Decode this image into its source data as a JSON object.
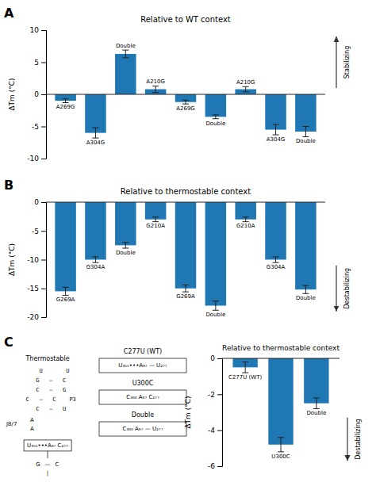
{
  "chart_data": [
    {
      "type": "bar",
      "title": "Relative to WT context",
      "ylabel": "ΔTm (°C)",
      "categories": [
        "A269G",
        "A304G",
        "Double",
        "A210G",
        "A269G",
        "Double",
        "A210G",
        "A304G",
        "Double"
      ],
      "values": [
        -1.0,
        -6.0,
        6.3,
        0.8,
        -1.2,
        -3.5,
        0.8,
        -5.5,
        -5.8
      ],
      "errors": [
        0.3,
        0.8,
        0.6,
        0.5,
        0.3,
        0.3,
        0.4,
        0.8,
        0.8
      ],
      "ylim": [
        -10,
        10
      ],
      "yticks": [
        -10,
        -5,
        0,
        5,
        10
      ],
      "tick_labels": "y",
      "annotations": [
        {
          "text": "A"
        },
        {
          "text": "Stabilizing",
          "arrow": "up"
        }
      ]
    },
    {
      "type": "bar",
      "title": "Relative to thermostable context",
      "ylabel": "ΔTm (°C)",
      "categories": [
        "G269A",
        "G304A",
        "Double",
        "G210A",
        "G269A",
        "Double",
        "G210A",
        "G304A",
        "Double"
      ],
      "values": [
        -15.5,
        -10.0,
        -7.5,
        -3.0,
        -15.0,
        -18.0,
        -3.0,
        -10.0,
        -15.2
      ],
      "errors": [
        0.7,
        0.5,
        0.5,
        0.4,
        0.6,
        0.8,
        0.4,
        0.5,
        0.7
      ],
      "ylim": [
        -20,
        0
      ],
      "yticks": [
        -20,
        -15,
        -10,
        -5,
        0
      ],
      "tick_labels": "y",
      "annotations": [
        {
          "text": "B"
        },
        {
          "text": "Destabilizing",
          "arrow": "down"
        }
      ]
    },
    {
      "type": "diagram",
      "annotations": [
        {
          "text": "C"
        },
        {
          "text": "Thermostable"
        },
        {
          "text": "    U       U"
        },
        {
          "text": "  G   —   C"
        },
        {
          "text": "  C   —   G"
        },
        {
          "text": "  C   —   C    P3"
        },
        {
          "text": "  C   —   U"
        },
        {
          "text": "J8/7"
        },
        {
          "text": "A"
        },
        {
          "text": "A"
        },
        {
          "text": "U₃₅₅•••A₉₇   C₂₇₇",
          "box": true
        },
        {
          "text": "G"
        },
        {
          "text": "—"
        },
        {
          "text": "C"
        },
        {
          "text": "|"
        }
      ]
    },
    {
      "type": "diagram",
      "annotations": [
        {
          "text": "C277U (WT)"
        },
        {
          "text": "U₃₅₅•••A₉₇ — U₂₇₇",
          "box": true
        },
        {
          "text": "U300C"
        },
        {
          "text": "C₃₀₀   A₉₇   C₂₇₇",
          "box": true
        },
        {
          "text": "Double"
        },
        {
          "text": "C₃₀₀   A₉₇ — U₂₇₇",
          "box": true
        }
      ]
    },
    {
      "type": "bar",
      "title": "Relative to thermostable context",
      "ylabel": "ΔTm (°C)",
      "categories": [
        "C277U (WT)",
        "U300C",
        "Double"
      ],
      "values": [
        -0.5,
        -4.8,
        -2.5
      ],
      "errors": [
        0.3,
        0.4,
        0.3
      ],
      "ylim": [
        -6,
        0
      ],
      "yticks": [
        -6,
        -4,
        -2,
        0
      ],
      "tick_labels": "y",
      "annotations": [
        {
          "text": "Destabilizing",
          "arrow": "down"
        }
      ]
    }
  ]
}
